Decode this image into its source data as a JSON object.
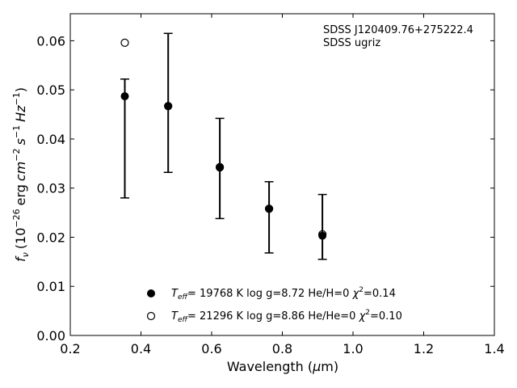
{
  "chart_data": {
    "type": "scatter",
    "xlabel": "Wavelength (µm)",
    "xlabel_plain": "Wavelength (",
    "xlabel_mu": "µ",
    "xlabel_unit": "m)",
    "ylabel_parts": {
      "f": "f",
      "nu": "ν",
      "scale": "(10",
      "scale_exp": "−26",
      "erg": "erg",
      "cm": "cm",
      "cm_exp": "−2",
      "s": "s",
      "s_exp": "−1",
      "hz": "Hz",
      "hz_exp": "−1",
      "close": ")"
    },
    "xlim": [
      0.2,
      1.4
    ],
    "ylim": [
      0.0,
      0.0655
    ],
    "xticks": [
      0.2,
      0.4,
      0.6,
      0.8,
      1.0,
      1.2,
      1.4
    ],
    "xtick_labels": [
      "0.2",
      "0.4",
      "0.6",
      "0.8",
      "1.0",
      "1.2",
      "1.4"
    ],
    "yticks": [
      0.0,
      0.01,
      0.02,
      0.03,
      0.04,
      0.05,
      0.06
    ],
    "ytick_labels": [
      "0.00",
      "0.01",
      "0.02",
      "0.03",
      "0.04",
      "0.05",
      "0.06"
    ],
    "grid": false,
    "annotation": [
      "SDSS J120409.76+275222.4",
      "SDSS ugriz"
    ],
    "observed": {
      "x": [
        0.3543,
        0.477,
        0.6231,
        0.7625,
        0.9134
      ],
      "y": [
        0.0487,
        0.0466,
        0.0346,
        0.0258,
        0.0203
      ],
      "err_low": [
        0.028,
        0.0332,
        0.0238,
        0.0168,
        0.0155
      ],
      "err_high": [
        0.0522,
        0.0615,
        0.0442,
        0.0313,
        0.0287
      ]
    },
    "series": [
      {
        "name": "Teff= 19768 K  log g=8.72  He/H=0  χ2=0.14",
        "marker": "filled",
        "x": [
          0.3543,
          0.477,
          0.6231,
          0.7625,
          0.9134
        ],
        "y": [
          0.0487,
          0.0467,
          0.0343,
          0.0258,
          0.0203
        ]
      },
      {
        "name": "Teff= 21296 K  log g=8.86  He/He=0  χ2=0.10",
        "marker": "open",
        "x": [
          0.3543,
          0.477,
          0.6231,
          0.7625,
          0.9134
        ],
        "y": [
          0.0596,
          0.0467,
          0.0342,
          0.0258,
          0.0206
        ]
      }
    ],
    "legend": [
      {
        "T": "T",
        "Tsub": "eff",
        "rest": "= 19768 K  log g=8.72  He/H=0  ",
        "chi": "χ",
        "chi_exp": "2",
        "chi_val": "=0.14"
      },
      {
        "T": "T",
        "Tsub": "eff",
        "rest": "= 21296 K  log g=8.86  He/He=0  ",
        "chi": "χ",
        "chi_exp": "2",
        "chi_val": "=0.10"
      }
    ]
  }
}
